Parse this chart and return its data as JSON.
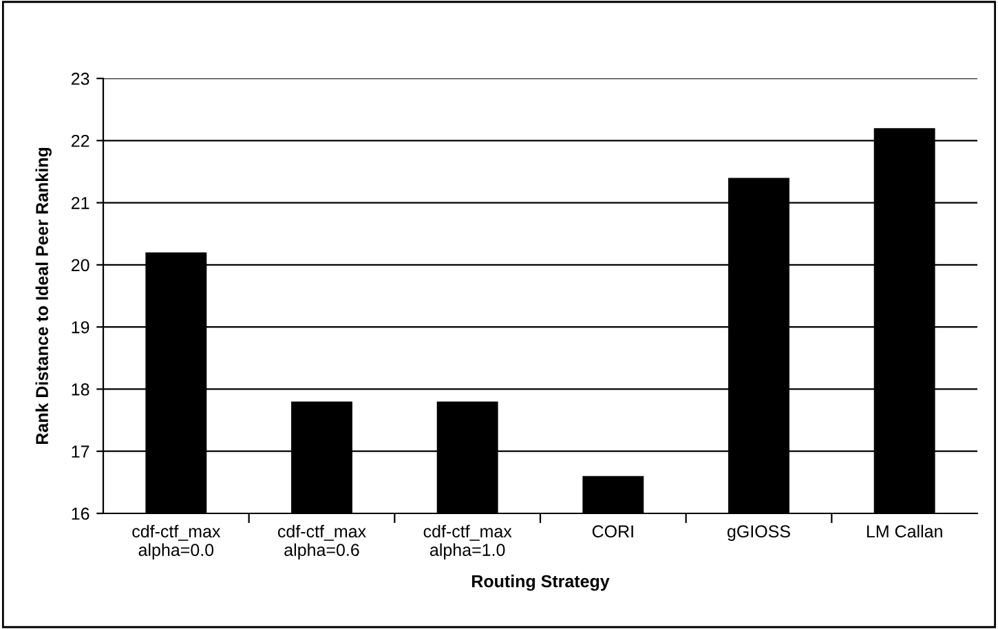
{
  "chart_data": {
    "type": "bar",
    "xlabel": "Routing Strategy",
    "ylabel": "Rank Distance to Ideal Peer Ranking",
    "categories": [
      "cdf-ctf_max\nalpha=0.0",
      "cdf-ctf_max\nalpha=0.6",
      "cdf-ctf_max\nalpha=1.0",
      "CORI",
      "gGIOSS",
      "LM Callan"
    ],
    "values": [
      20.2,
      17.8,
      17.8,
      16.6,
      21.4,
      22.2
    ],
    "color": "#000000",
    "ylim": [
      16,
      23
    ],
    "yticks": [
      16,
      17,
      18,
      19,
      20,
      21,
      22,
      23
    ],
    "grid": "y",
    "legend": false
  }
}
